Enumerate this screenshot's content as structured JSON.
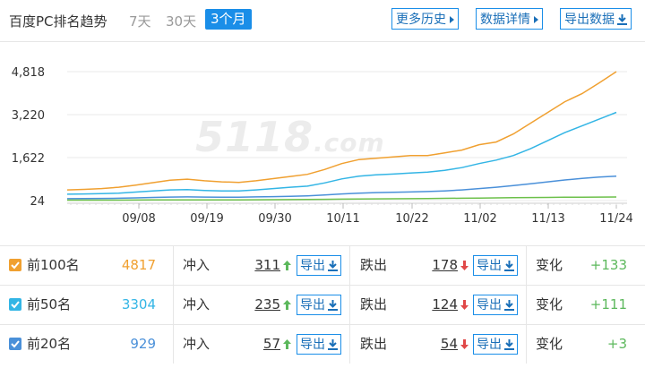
{
  "header": {
    "title": "百度PC排名趋势",
    "ranges": [
      "7天",
      "30天",
      "3个月"
    ],
    "active_range": "3个月",
    "buttons": {
      "history": "更多历史",
      "details": "数据详情",
      "export": "导出数据"
    }
  },
  "watermark": {
    "main": "5118",
    "suffix": ".com"
  },
  "colors": {
    "top100": "#f0a030",
    "top50": "#33b5e5",
    "top20": "#4a90d9",
    "top10": "#6cc04a",
    "accent": "#1a8ee8",
    "up": "#5cb85c",
    "down": "#e04848"
  },
  "chart_data": {
    "type": "line",
    "x_ticks": [
      "09/08",
      "09/19",
      "09/30",
      "10/11",
      "10/22",
      "11/02",
      "11/13",
      "11/24"
    ],
    "y_ticks": [
      24,
      1622,
      3220,
      4818
    ],
    "ylim": [
      24,
      4818
    ],
    "grid": true,
    "series": [
      {
        "name": "前100名",
        "color": "#f0a030",
        "values": [
          420,
          440,
          470,
          520,
          600,
          690,
          780,
          820,
          760,
          720,
          700,
          760,
          840,
          920,
          1000,
          1180,
          1400,
          1550,
          1600,
          1650,
          1700,
          1700,
          1800,
          1900,
          2100,
          2200,
          2500,
          2900,
          3300,
          3700,
          4000,
          4400,
          4817
        ]
      },
      {
        "name": "前50名",
        "color": "#33b5e5",
        "values": [
          260,
          270,
          280,
          300,
          340,
          380,
          420,
          430,
          400,
          380,
          380,
          420,
          470,
          520,
          560,
          680,
          830,
          930,
          980,
          1010,
          1050,
          1080,
          1150,
          1250,
          1400,
          1530,
          1700,
          1950,
          2250,
          2550,
          2800,
          3050,
          3304
        ]
      },
      {
        "name": "前20名",
        "color": "#4a90d9",
        "values": [
          95,
          100,
          105,
          110,
          125,
          140,
          155,
          160,
          155,
          150,
          150,
          160,
          170,
          185,
          200,
          230,
          270,
          300,
          320,
          330,
          345,
          360,
          385,
          420,
          470,
          520,
          580,
          650,
          720,
          790,
          850,
          900,
          929
        ]
      },
      {
        "name": "",
        "color": "#6cc04a",
        "values": [
          40,
          40,
          41,
          42,
          44,
          46,
          48,
          50,
          50,
          50,
          52,
          54,
          56,
          60,
          64,
          70,
          76,
          82,
          86,
          90,
          95,
          100,
          106,
          112,
          118,
          124,
          130,
          136,
          142,
          148,
          152,
          155,
          157
        ]
      }
    ]
  },
  "rows": [
    {
      "label": "前100名",
      "count": "4817",
      "count_color": "#f0a030",
      "cb_color": "#f0a030",
      "rise_label": "冲入",
      "rise": "311",
      "export": "导出",
      "fall_label": "跌出",
      "fall": "178",
      "change_label": "变化",
      "change": "+133"
    },
    {
      "label": "前50名",
      "count": "3304",
      "count_color": "#33b5e5",
      "cb_color": "#33b5e5",
      "rise_label": "冲入",
      "rise": "235",
      "export": "导出",
      "fall_label": "跌出",
      "fall": "124",
      "change_label": "变化",
      "change": "+111"
    },
    {
      "label": "前20名",
      "count": "929",
      "count_color": "#4a90d9",
      "cb_color": "#4a90d9",
      "rise_label": "冲入",
      "rise": "57",
      "export": "导出",
      "fall_label": "跌出",
      "fall": "54",
      "change_label": "变化",
      "change": "+3"
    }
  ]
}
